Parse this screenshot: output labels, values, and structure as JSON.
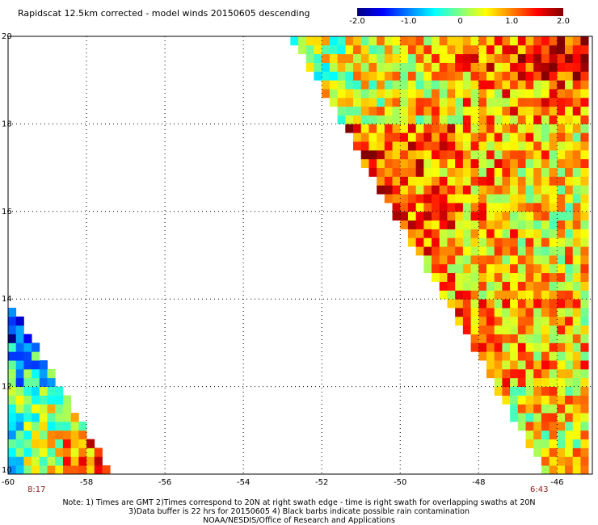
{
  "header": {
    "title": "Rapidscat 12.5km corrected - model winds 20150605 descending"
  },
  "colorbar": {
    "tick_labels": [
      "-2.0",
      "-1.0",
      "0",
      "1.0",
      "2.0"
    ],
    "colors": [
      "#000080",
      "#0000ff",
      "#0080ff",
      "#00ffff",
      "#80ff80",
      "#ffff00",
      "#ff8000",
      "#ff0000",
      "#800000"
    ]
  },
  "footer": {
    "start_time": "8:17",
    "end_time": "6:43",
    "note_line1": "Note: 1) Times are GMT 2)Times correspond to 20N at right swath edge - time is right swath for overlapping swaths at 20N",
    "note_line2": "3)Data buffer is 22 hrs for 20150605 4) Black barbs indicate possible rain contamination",
    "note_line3": "NOAA/NESDIS/Office of Research and Applications"
  },
  "chart_data": {
    "type": "heatmap",
    "title": "Rapidscat 12.5km corrected - model winds 20150605 descending",
    "xlabel": "",
    "ylabel": "",
    "x_ticks": [
      -60,
      -58,
      -56,
      -54,
      -52,
      -50,
      -48,
      -46
    ],
    "x_tick_labels": [
      "-60",
      "-58",
      "-56",
      "-54",
      "-52",
      "-50",
      "-48",
      "-46"
    ],
    "y_ticks": [
      10,
      12,
      14,
      16,
      18,
      20
    ],
    "y_tick_labels": [
      "10",
      "12",
      "14",
      "16",
      "18",
      "20"
    ],
    "xlim": [
      -60,
      -45.1
    ],
    "ylim": [
      10,
      20
    ],
    "grid": true,
    "grid_style": "dotted",
    "color_scale": {
      "min": -2.0,
      "max": 2.0
    },
    "swaths": [
      {
        "region": "right swath",
        "edges": [
          [
            -52.8,
            20
          ],
          [
            -45.1,
            20
          ],
          [
            -45.1,
            9.9
          ],
          [
            -46.2,
            9.9
          ]
        ],
        "values_by_latitude": [
          {
            "lat": 19.5,
            "west_part": 0.0,
            "east_part": 1.6
          },
          {
            "lat": 18.5,
            "west_part": 0.1,
            "east_part": 1.2
          },
          {
            "lat": 17.5,
            "west_part": 1.5,
            "east_part": 0.6
          },
          {
            "lat": 16.5,
            "west_part": 1.7,
            "east_part": 0.3
          },
          {
            "lat": 15.5,
            "west_part": 1.6,
            "east_part": 0.4
          },
          {
            "lat": 14.5,
            "west_part": 1.2,
            "east_part": 0.5
          },
          {
            "lat": 13.5,
            "west_part": 1.5,
            "east_part": 0.6
          },
          {
            "lat": 12.5,
            "west_part": 1.0,
            "east_part": 0.7
          },
          {
            "lat": 11.5,
            "west_part": 0.3,
            "east_part": 0.6
          },
          {
            "lat": 10.5,
            "west_part": 0.1,
            "east_part": 0.5
          }
        ]
      },
      {
        "region": "left swath",
        "edges": [
          [
            -60,
            14.0
          ],
          [
            -60,
            10
          ],
          [
            -57.3,
            10
          ]
        ],
        "values_by_latitude": [
          {
            "lat": 13.5,
            "west_part": -1.6,
            "east_part": -1.2
          },
          {
            "lat": 12.5,
            "west_part": -0.6,
            "east_part": -0.3
          },
          {
            "lat": 11.5,
            "west_part": -0.4,
            "east_part": 0.9
          },
          {
            "lat": 10.5,
            "west_part": -0.2,
            "east_part": 1.4
          }
        ]
      }
    ]
  }
}
